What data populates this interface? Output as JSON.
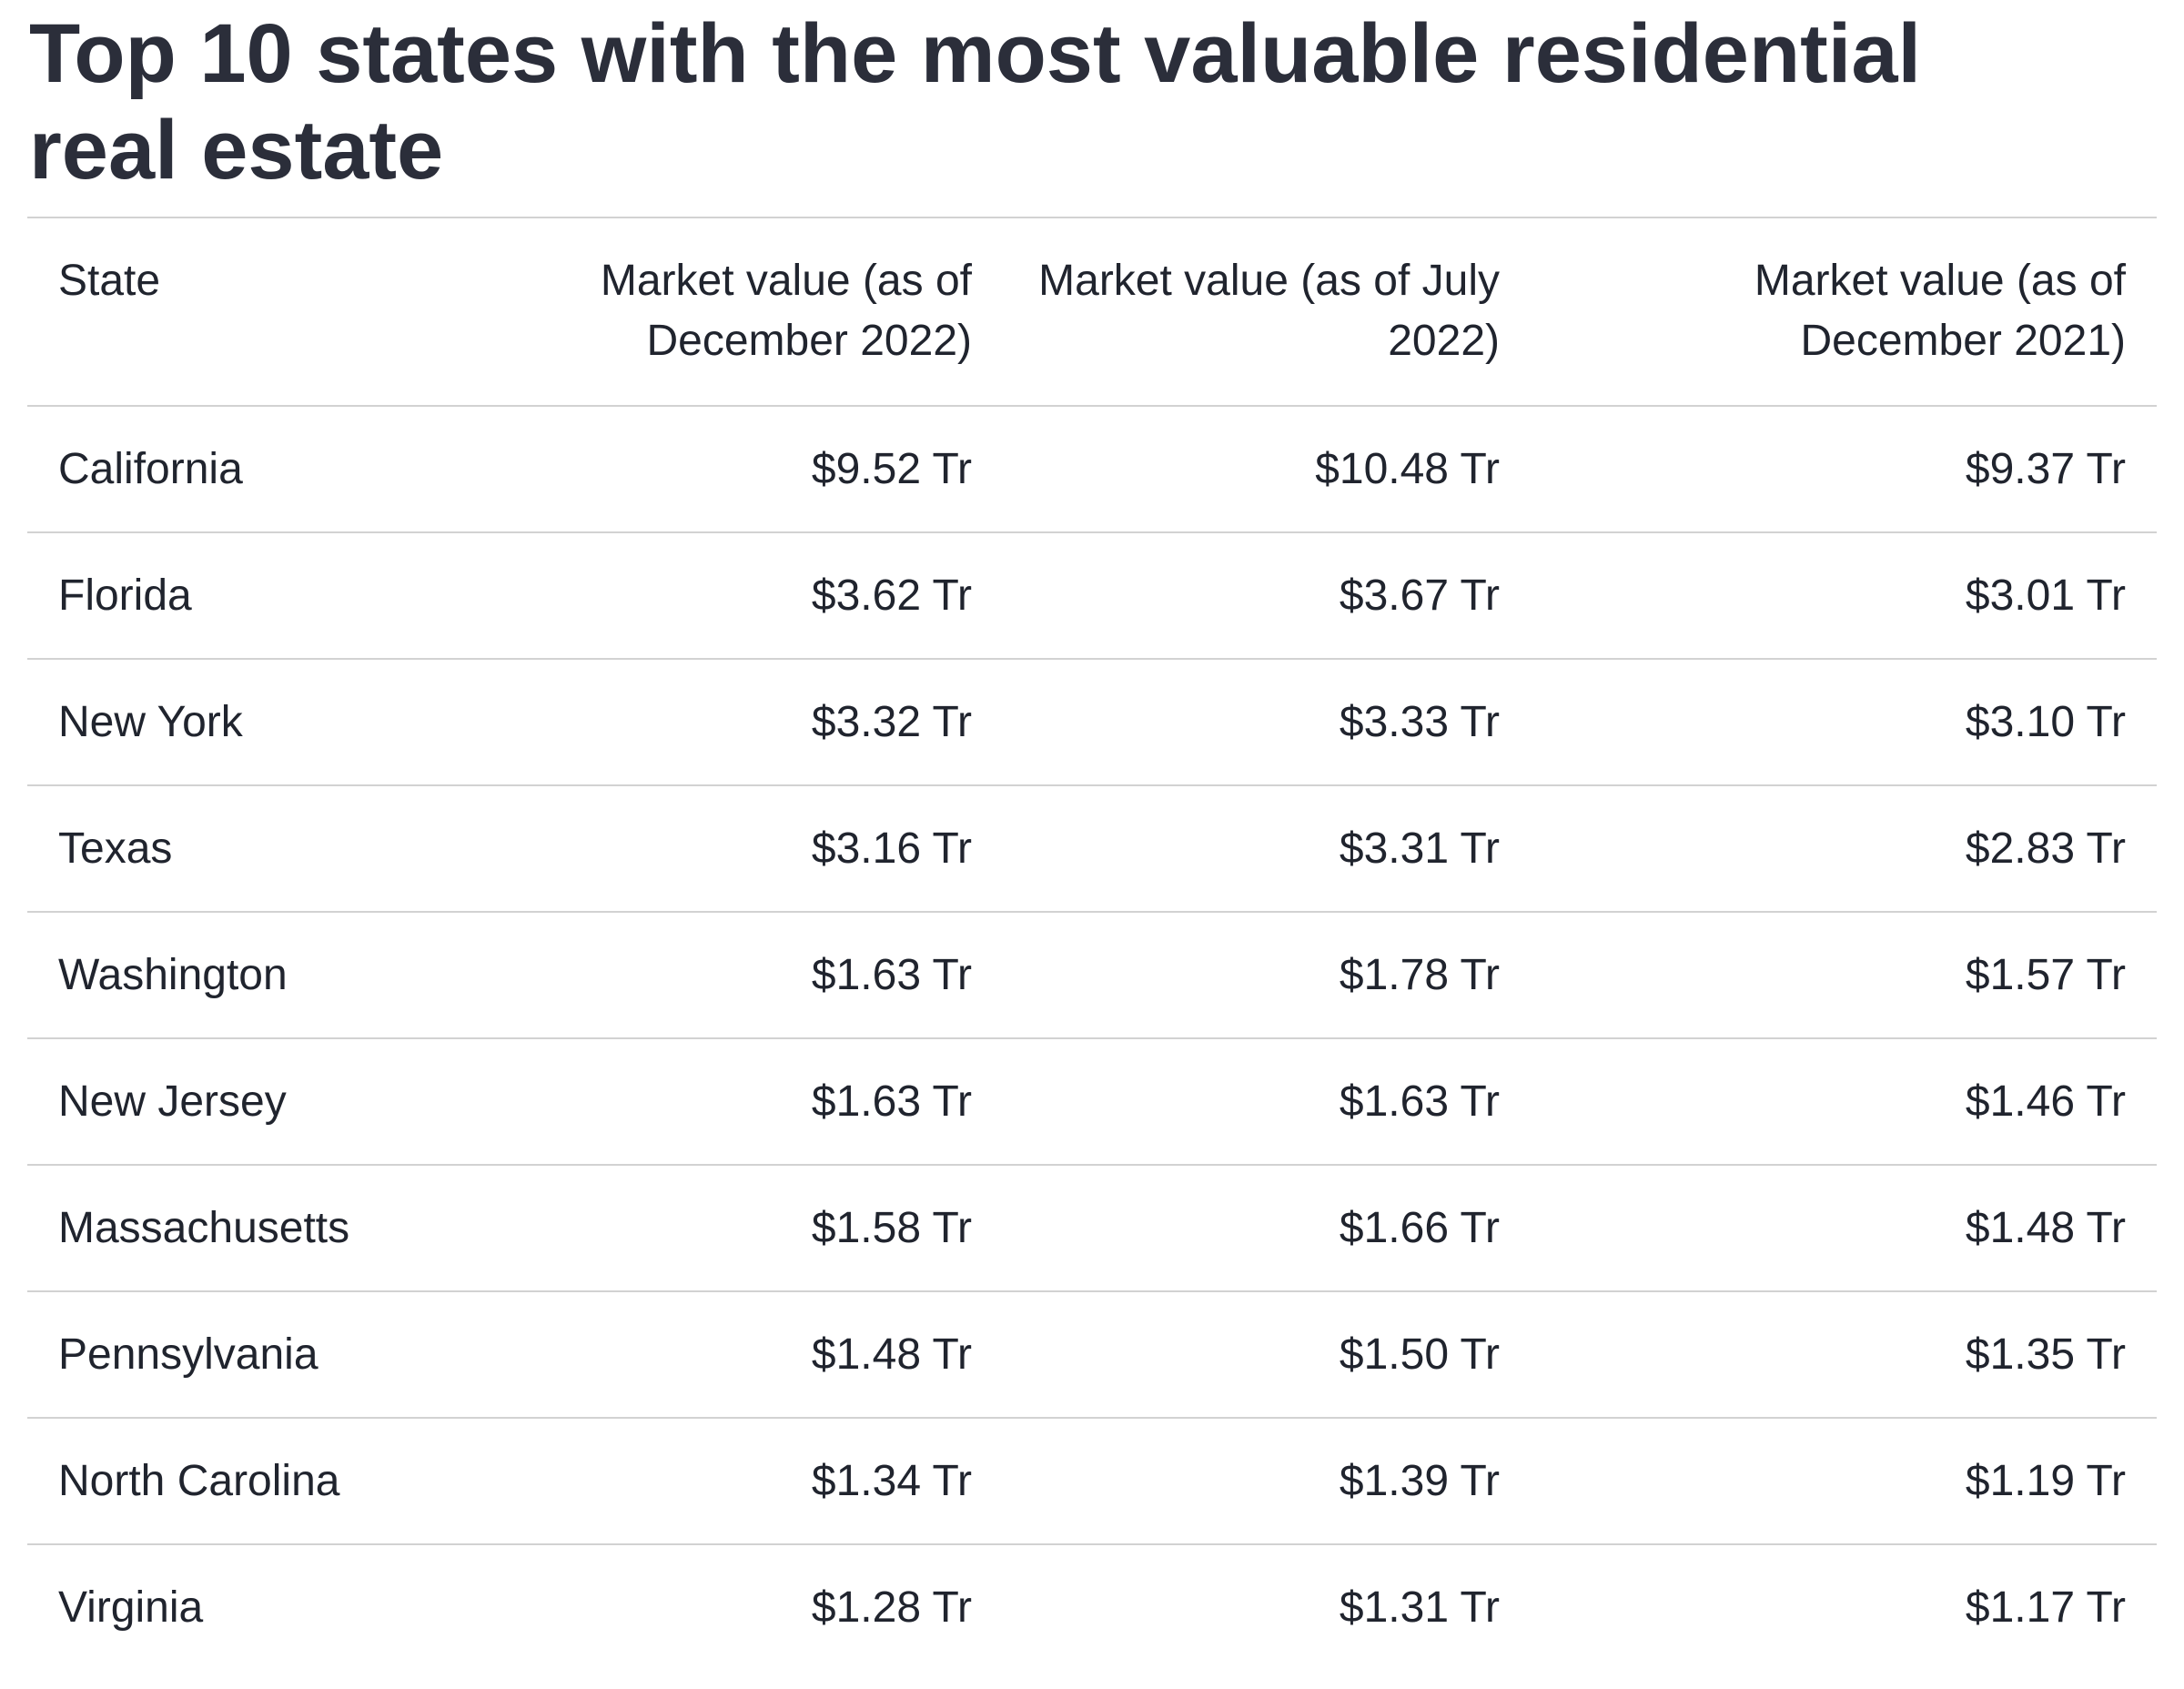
{
  "title": "Top 10 states with the most valuable residential real estate",
  "table": {
    "columns": [
      "State",
      "Market value (as of December 2022)",
      "Market value (as of July 2022)",
      "Market value (as of December 2021)"
    ],
    "rows": [
      [
        "California",
        "$9.52 Tr",
        "$10.48 Tr",
        "$9.37 Tr"
      ],
      [
        "Florida",
        "$3.62 Tr",
        "$3.67 Tr",
        "$3.01 Tr"
      ],
      [
        "New York",
        "$3.32 Tr",
        "$3.33 Tr",
        "$3.10 Tr"
      ],
      [
        "Texas",
        "$3.16 Tr",
        "$3.31 Tr",
        "$2.83 Tr"
      ],
      [
        "Washington",
        "$1.63 Tr",
        "$1.78 Tr",
        "$1.57 Tr"
      ],
      [
        "New Jersey",
        "$1.63 Tr",
        "$1.63 Tr",
        "$1.46 Tr"
      ],
      [
        "Massachusetts",
        "$1.58 Tr",
        "$1.66 Tr",
        "$1.48 Tr"
      ],
      [
        "Pennsylvania",
        "$1.48 Tr",
        "$1.50 Tr",
        "$1.35 Tr"
      ],
      [
        "North Carolina",
        "$1.34 Tr",
        "$1.39 Tr",
        "$1.19 Tr"
      ],
      [
        "Virginia",
        "$1.28 Tr",
        "$1.31 Tr",
        "$1.17 Tr"
      ]
    ]
  },
  "colors": {
    "title_text": "#2b2e3a",
    "table_text": "#20242e",
    "divider": "#d2d2d2",
    "background": "#ffffff"
  },
  "chart_data": {
    "type": "table",
    "title": "Top 10 states with the most valuable residential real estate",
    "columns": [
      "State",
      "Market value (as of December 2022)",
      "Market value (as of July 2022)",
      "Market value (as of December 2021)"
    ],
    "rows": [
      [
        "California",
        "$9.52 Tr",
        "$10.48 Tr",
        "$9.37 Tr"
      ],
      [
        "Florida",
        "$3.62 Tr",
        "$3.67 Tr",
        "$3.01 Tr"
      ],
      [
        "New York",
        "$3.32 Tr",
        "$3.33 Tr",
        "$3.10 Tr"
      ],
      [
        "Texas",
        "$3.16 Tr",
        "$3.31 Tr",
        "$2.83 Tr"
      ],
      [
        "Washington",
        "$1.63 Tr",
        "$1.78 Tr",
        "$1.57 Tr"
      ],
      [
        "New Jersey",
        "$1.63 Tr",
        "$1.63 Tr",
        "$1.46 Tr"
      ],
      [
        "Massachusetts",
        "$1.58 Tr",
        "$1.66 Tr",
        "$1.48 Tr"
      ],
      [
        "Pennsylvania",
        "$1.48 Tr",
        "$1.50 Tr",
        "$1.35 Tr"
      ],
      [
        "North Carolina",
        "$1.34 Tr",
        "$1.39 Tr",
        "$1.19 Tr"
      ],
      [
        "Virginia",
        "$1.28 Tr",
        "$1.31 Tr",
        "$1.17 Tr"
      ]
    ],
    "unit_suffix": "Tr",
    "series": [
      {
        "name": "Market value (as of December 2022)",
        "values_trillion_usd": [
          9.52,
          3.62,
          3.32,
          3.16,
          1.63,
          1.63,
          1.58,
          1.48,
          1.34,
          1.28
        ]
      },
      {
        "name": "Market value (as of July 2022)",
        "values_trillion_usd": [
          10.48,
          3.67,
          3.33,
          3.31,
          1.78,
          1.63,
          1.66,
          1.5,
          1.39,
          1.31
        ]
      },
      {
        "name": "Market value (as of December 2021)",
        "values_trillion_usd": [
          9.37,
          3.01,
          3.1,
          2.83,
          1.57,
          1.46,
          1.48,
          1.35,
          1.19,
          1.17
        ]
      }
    ],
    "categories": [
      "California",
      "Florida",
      "New York",
      "Texas",
      "Washington",
      "New Jersey",
      "Massachusetts",
      "Pennsylvania",
      "North Carolina",
      "Virginia"
    ]
  }
}
